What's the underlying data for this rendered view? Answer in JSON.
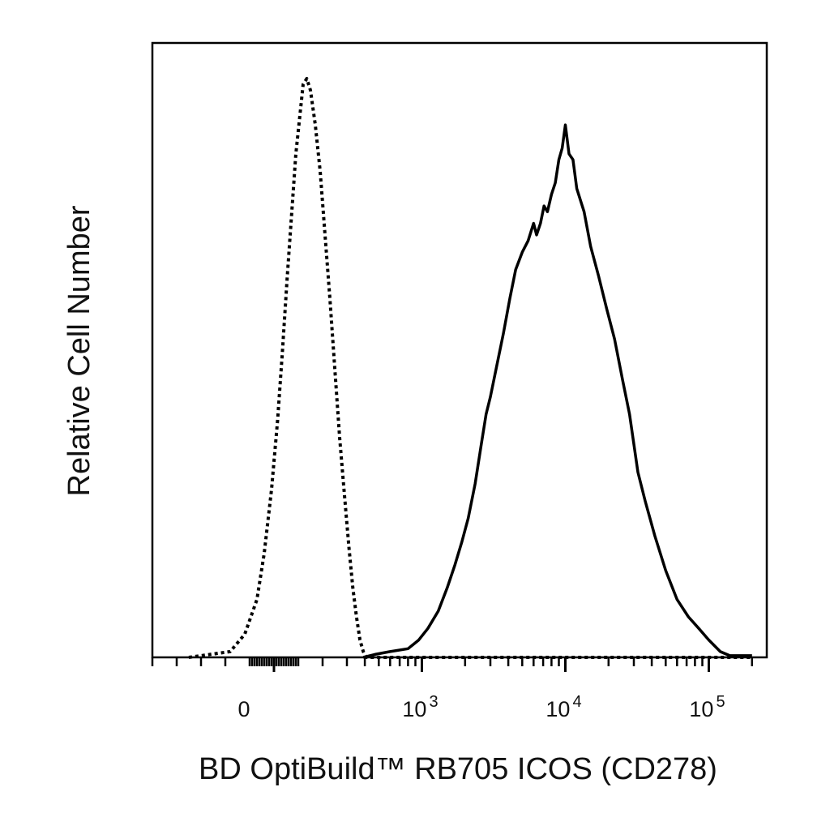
{
  "chart_data": {
    "type": "line",
    "title": "",
    "xlabel": "BD OptiBuild™ RB705 ICOS (CD278)",
    "ylabel": "Relative Cell Number",
    "x_scale": "biexponential",
    "xlim": [
      -250,
      200000
    ],
    "ylim": [
      0,
      1.0
    ],
    "grid": false,
    "legend": "none",
    "colors": {
      "line": "#000000",
      "frame": "#000000",
      "background": "#ffffff"
    },
    "x_tick_labels": [
      {
        "value": 0,
        "base": "0",
        "exp": ""
      },
      {
        "value": 1000,
        "base": "10",
        "exp": "3"
      },
      {
        "value": 10000,
        "base": "10",
        "exp": "4"
      },
      {
        "value": 100000,
        "base": "10",
        "exp": "5"
      }
    ],
    "series": [
      {
        "style": "dotted",
        "points": [
          [
            -350,
            0.0
          ],
          [
            -180,
            0.01
          ],
          [
            -120,
            0.04
          ],
          [
            -70,
            0.1
          ],
          [
            -40,
            0.18
          ],
          [
            -10,
            0.29
          ],
          [
            15,
            0.41
          ],
          [
            35,
            0.53
          ],
          [
            55,
            0.66
          ],
          [
            75,
            0.78
          ],
          [
            90,
            0.87
          ],
          [
            105,
            0.93
          ],
          [
            120,
            0.99
          ],
          [
            135,
            1.0
          ],
          [
            150,
            0.98
          ],
          [
            170,
            0.92
          ],
          [
            190,
            0.84
          ],
          [
            210,
            0.73
          ],
          [
            230,
            0.62
          ],
          [
            250,
            0.5
          ],
          [
            270,
            0.38
          ],
          [
            290,
            0.28
          ],
          [
            310,
            0.19
          ],
          [
            330,
            0.12
          ],
          [
            350,
            0.07
          ],
          [
            370,
            0.03
          ],
          [
            390,
            0.01
          ],
          [
            410,
            0.0
          ],
          [
            2000,
            0.0
          ],
          [
            200000,
            0.0
          ]
        ]
      },
      {
        "style": "solid",
        "points": [
          [
            390,
            0.0
          ],
          [
            470,
            0.005
          ],
          [
            600,
            0.01
          ],
          [
            800,
            0.015
          ],
          [
            950,
            0.03
          ],
          [
            1100,
            0.05
          ],
          [
            1300,
            0.08
          ],
          [
            1500,
            0.12
          ],
          [
            1700,
            0.16
          ],
          [
            1900,
            0.2
          ],
          [
            2100,
            0.24
          ],
          [
            2350,
            0.3
          ],
          [
            2600,
            0.37
          ],
          [
            2800,
            0.42
          ],
          [
            3000,
            0.45
          ],
          [
            3300,
            0.5
          ],
          [
            3700,
            0.56
          ],
          [
            4100,
            0.62
          ],
          [
            4500,
            0.67
          ],
          [
            5000,
            0.7
          ],
          [
            5500,
            0.72
          ],
          [
            6000,
            0.75
          ],
          [
            6300,
            0.73
          ],
          [
            6700,
            0.75
          ],
          [
            7100,
            0.78
          ],
          [
            7500,
            0.77
          ],
          [
            8000,
            0.8
          ],
          [
            8500,
            0.82
          ],
          [
            9000,
            0.86
          ],
          [
            9500,
            0.88
          ],
          [
            10000,
            0.92
          ],
          [
            10600,
            0.87
          ],
          [
            11300,
            0.86
          ],
          [
            12000,
            0.81
          ],
          [
            13500,
            0.77
          ],
          [
            15000,
            0.71
          ],
          [
            17000,
            0.66
          ],
          [
            19500,
            0.6
          ],
          [
            22000,
            0.55
          ],
          [
            25000,
            0.48
          ],
          [
            28000,
            0.42
          ],
          [
            32000,
            0.32
          ],
          [
            36000,
            0.27
          ],
          [
            42000,
            0.21
          ],
          [
            50000,
            0.15
          ],
          [
            60000,
            0.1
          ],
          [
            72000,
            0.07
          ],
          [
            85000,
            0.05
          ],
          [
            100000,
            0.03
          ],
          [
            120000,
            0.01
          ],
          [
            140000,
            0.003
          ],
          [
            200000,
            0.003
          ]
        ]
      }
    ]
  }
}
